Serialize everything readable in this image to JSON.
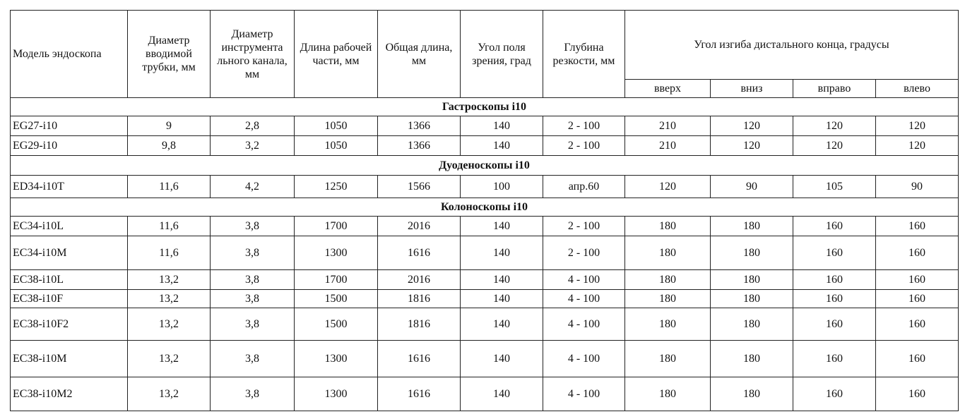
{
  "table": {
    "headers": {
      "model": "Модель эндоскопа",
      "tube_diameter": "Диаметр вводимой трубки, мм",
      "channel_diameter": "Диаметр инструмента льного канала, мм",
      "working_length": "Длина рабочей части, мм",
      "total_length": "Общая длина, мм",
      "field_of_view": "Угол поля зрения, град",
      "depth_of_field": "Глубина резкости, мм",
      "bending_angle": "Угол изгиба дистального конца, градусы",
      "up": "вверх",
      "down": "вниз",
      "right": "вправо",
      "left": "влево"
    },
    "sections": [
      {
        "title": "Гастроскопы i10",
        "rows": [
          [
            "EG27-i10",
            "9",
            "2,8",
            "1050",
            "1366",
            "140",
            "2 - 100",
            "210",
            "120",
            "120",
            "120"
          ],
          [
            "EG29-i10",
            "9,8",
            "3,2",
            "1050",
            "1366",
            "140",
            "2 - 100",
            "210",
            "120",
            "120",
            "120"
          ]
        ]
      },
      {
        "title": "Дуоденоскопы i10",
        "rows": [
          [
            "ED34-i10T",
            "11,6",
            "4,2",
            "1250",
            "1566",
            "100",
            "апр.60",
            "120",
            "90",
            "105",
            "90"
          ]
        ]
      },
      {
        "title": "Колоноскопы i10",
        "rows": [
          [
            "EC34-i10L",
            "11,6",
            "3,8",
            "1700",
            "2016",
            "140",
            "2 - 100",
            "180",
            "180",
            "160",
            "160"
          ],
          [
            "EC34-i10M",
            "11,6",
            "3,8",
            "1300",
            "1616",
            "140",
            "2 - 100",
            "180",
            "180",
            "160",
            "160"
          ],
          [
            "EC38-i10L",
            "13,2",
            "3,8",
            "1700",
            "2016",
            "140",
            "4 - 100",
            "180",
            "180",
            "160",
            "160"
          ],
          [
            "EC38-i10F",
            "13,2",
            "3,8",
            "1500",
            "1816",
            "140",
            "4 - 100",
            "180",
            "180",
            "160",
            "160"
          ],
          [
            "EC38-i10F2",
            "13,2",
            "3,8",
            "1500",
            "1816",
            "140",
            "4 - 100",
            "180",
            "180",
            "160",
            "160"
          ],
          [
            "EC38-i10M",
            "13,2",
            "3,8",
            "1300",
            "1616",
            "140",
            "4 - 100",
            "180",
            "180",
            "160",
            "160"
          ],
          [
            "EC38-i10M2",
            "13,2",
            "3,8",
            "1300",
            "1616",
            "140",
            "4 - 100",
            "180",
            "180",
            "160",
            "160"
          ]
        ]
      }
    ]
  }
}
